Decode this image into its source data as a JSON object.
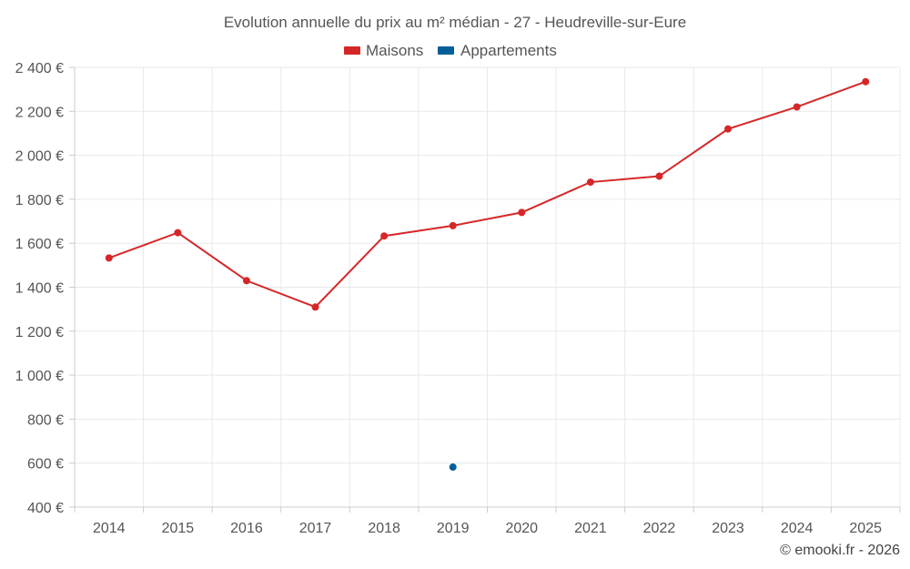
{
  "chart_data": {
    "type": "line",
    "title": "Evolution annuelle du prix au m² médian - 27 - Heudreville-sur-Eure",
    "x": [
      "2014",
      "2015",
      "2016",
      "2017",
      "2018",
      "2019",
      "2020",
      "2021",
      "2022",
      "2023",
      "2024",
      "2025"
    ],
    "series": [
      {
        "name": "Maisons",
        "color": "#d62728",
        "values": [
          1533,
          1648,
          1430,
          1310,
          1633,
          1680,
          1740,
          1878,
          1905,
          2120,
          2220,
          2335
        ]
      },
      {
        "name": "Appartements",
        "color": "#005f99",
        "values": [
          null,
          null,
          null,
          null,
          null,
          582,
          null,
          null,
          null,
          null,
          null,
          null
        ]
      }
    ],
    "ylim": [
      400,
      2400
    ],
    "yticks": [
      400,
      600,
      800,
      1000,
      1200,
      1400,
      1600,
      1800,
      2000,
      2200,
      2400
    ],
    "ytick_labels": [
      "400 €",
      "600 €",
      "800 €",
      "1 000 €",
      "1 200 €",
      "1 400 €",
      "1 600 €",
      "1 800 €",
      "2 000 €",
      "2 200 €",
      "2 400 €"
    ],
    "xlabel": "",
    "ylabel": "",
    "grid": true,
    "legend_position": "top-center"
  },
  "credit": "© emooki.fr - 2026"
}
